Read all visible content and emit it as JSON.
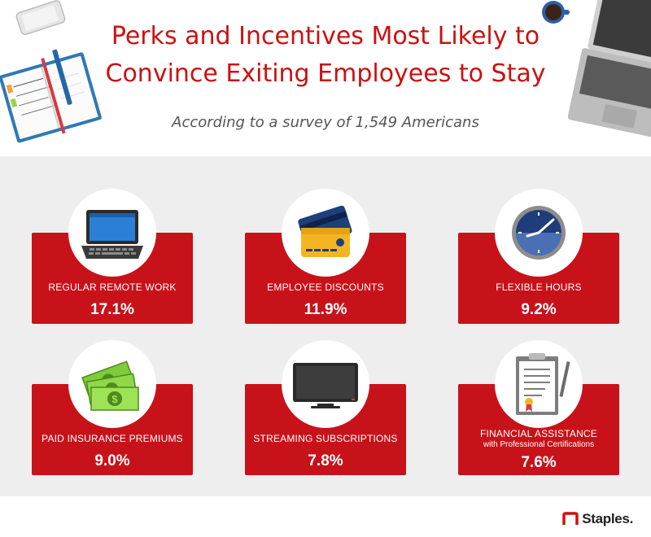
{
  "header": {
    "title_line1": "Perks and Incentives Most Likely to",
    "title_line2": "Convince Exiting Employees to Stay",
    "subtitle": "According to a survey of 1,549 Americans"
  },
  "perks": [
    {
      "label": "REGULAR REMOTE WORK",
      "sublabel": "",
      "value": "17.1%",
      "icon": "laptop-icon"
    },
    {
      "label": "EMPLOYEE DISCOUNTS",
      "sublabel": "",
      "value": "11.9%",
      "icon": "credit-card-icon"
    },
    {
      "label": "FLEXIBLE HOURS",
      "sublabel": "",
      "value": "9.2%",
      "icon": "clock-icon"
    },
    {
      "label": "PAID INSURANCE PREMIUMS",
      "sublabel": "",
      "value": "9.0%",
      "icon": "money-icon"
    },
    {
      "label": "STREAMING SUBSCRIPTIONS",
      "sublabel": "",
      "value": "7.8%",
      "icon": "tv-icon"
    },
    {
      "label": "FINANCIAL ASSISTANCE",
      "sublabel": "with Professional Certifications",
      "value": "7.6%",
      "icon": "certificate-clipboard-icon"
    }
  ],
  "footer": {
    "brand": "Staples."
  },
  "colors": {
    "accent": "#cc1111",
    "card": "#c8121a",
    "panel": "#eeeeee"
  }
}
